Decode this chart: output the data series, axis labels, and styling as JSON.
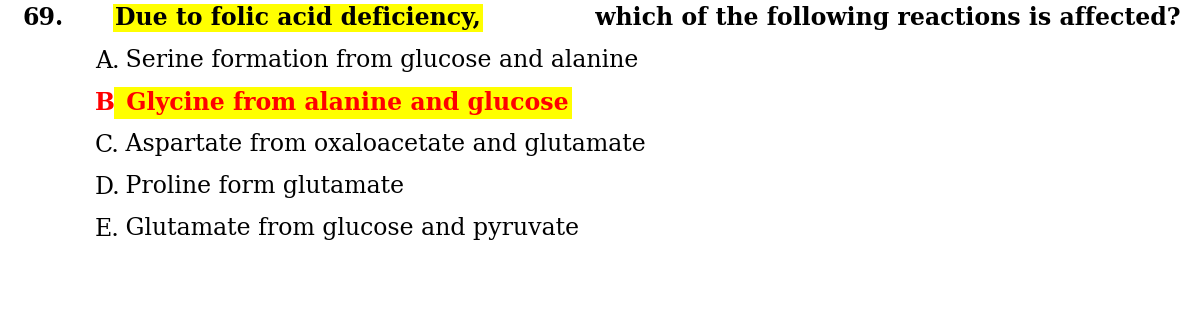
{
  "question_number": "69.",
  "question_highlight_text": "Due to folic acid deficiency,",
  "question_rest_text": " which of the following reactions is affected?",
  "highlight_color": "#FFFF00",
  "question_color": "#000000",
  "options": [
    {
      "label": "A.",
      "text": " Serine formation from glucose and alanine",
      "color": "#000000",
      "bold": false,
      "highlight": false
    },
    {
      "label": "B.",
      "text": " Glycine from alanine and glucose",
      "color": "#FF0000",
      "bold": true,
      "highlight": true
    },
    {
      "label": "C.",
      "text": " Aspartate from oxaloacetate and glutamate",
      "color": "#000000",
      "bold": false,
      "highlight": false
    },
    {
      "label": "D.",
      "text": " Proline form glutamate",
      "color": "#000000",
      "bold": false,
      "highlight": false
    },
    {
      "label": "E.",
      "text": " Glutamate from glucose and pyruvate",
      "color": "#000000",
      "bold": false,
      "highlight": false
    }
  ],
  "background_color": "#FFFFFF",
  "font_size": 17,
  "question_font_size": 17,
  "figsize": [
    12.0,
    3.13
  ],
  "dpi": 100
}
